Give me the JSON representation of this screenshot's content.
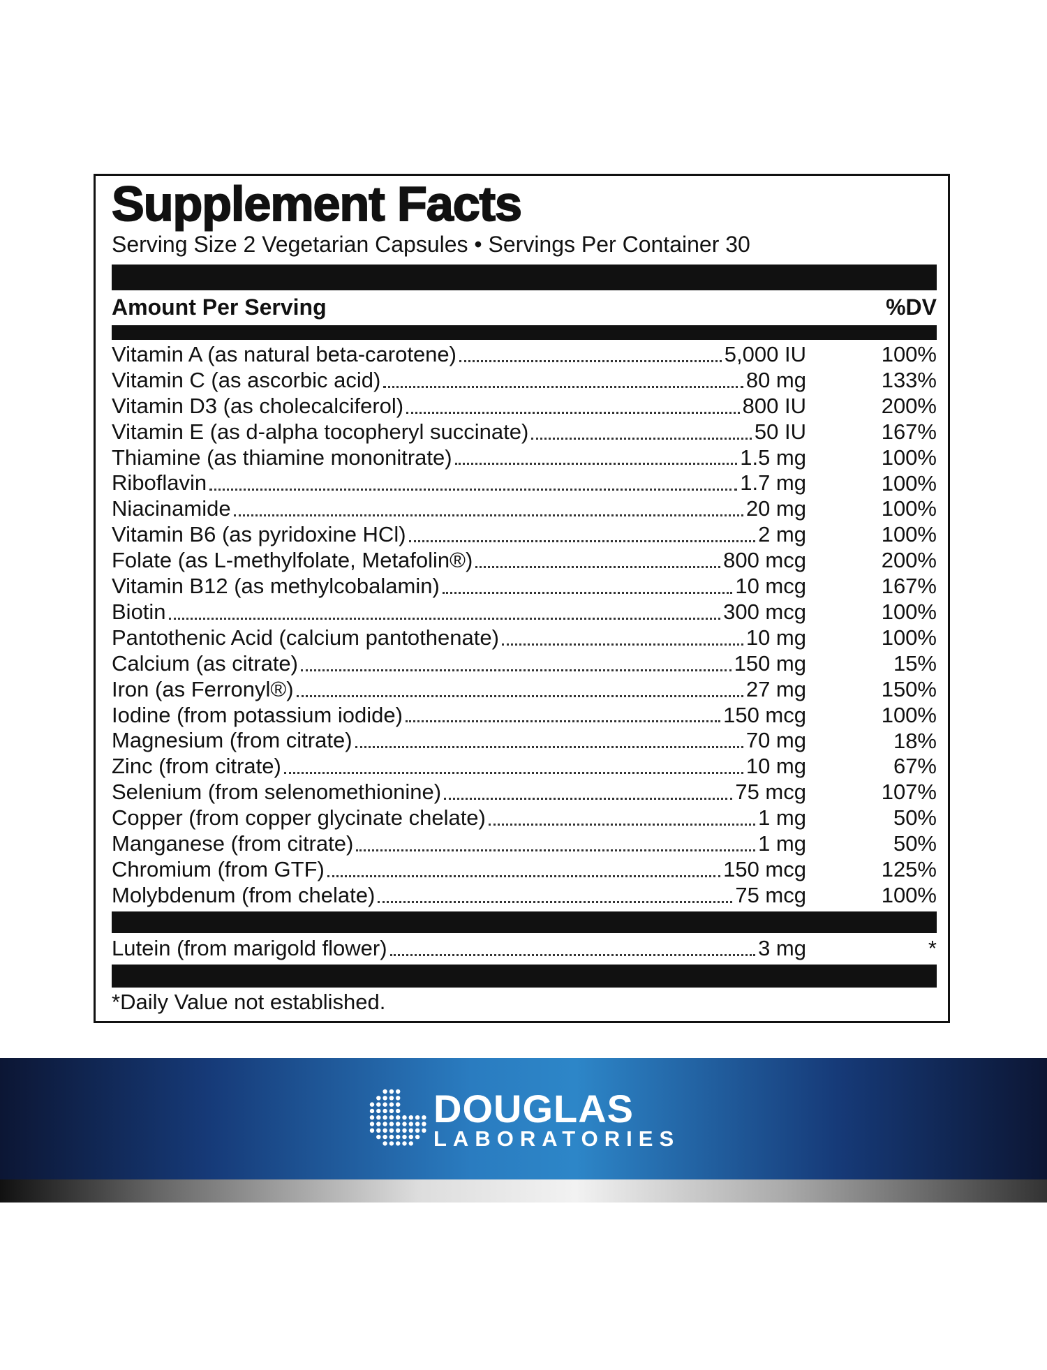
{
  "header": {
    "title": "Supplement Facts",
    "serving": "Serving Size 2 Vegetarian Capsules • Servings Per Container 30"
  },
  "columns": {
    "amount": "Amount Per Serving",
    "dv": "%DV"
  },
  "rows": [
    {
      "name": "Vitamin A (as natural beta-carotene)",
      "amount": "5,000 IU",
      "dv": "100%"
    },
    {
      "name": "Vitamin C (as ascorbic acid)",
      "amount": "80 mg",
      "dv": "133%"
    },
    {
      "name": "Vitamin D3 (as cholecalciferol)",
      "amount": "800 IU",
      "dv": "200%"
    },
    {
      "name": "Vitamin E (as d-alpha tocopheryl succinate)",
      "amount": "50 IU",
      "dv": "167%"
    },
    {
      "name": "Thiamine (as thiamine mononitrate)",
      "amount": "1.5 mg",
      "dv": "100%"
    },
    {
      "name": "Riboflavin",
      "amount": "1.7 mg",
      "dv": "100%"
    },
    {
      "name": "Niacinamide",
      "amount": "20 mg",
      "dv": "100%"
    },
    {
      "name": "Vitamin B6 (as pyridoxine HCl)",
      "amount": "2 mg",
      "dv": "100%"
    },
    {
      "name": "Folate (as L-methylfolate, Metafolin®)",
      "amount": "800 mcg",
      "dv": "200%"
    },
    {
      "name": "Vitamin B12 (as methylcobalamin)",
      "amount": "10 mcg",
      "dv": "167%"
    },
    {
      "name": "Biotin",
      "amount": "300 mcg",
      "dv": "100%"
    },
    {
      "name": "Pantothenic Acid (calcium pantothenate)",
      "amount": "10 mg",
      "dv": "100%"
    },
    {
      "name": "Calcium (as citrate)",
      "amount": "150 mg",
      "dv": "15%"
    },
    {
      "name": "Iron (as Ferronyl®)",
      "amount": "27 mg",
      "dv": "150%"
    },
    {
      "name": "Iodine (from potassium iodide)",
      "amount": "150 mcg",
      "dv": "100%"
    },
    {
      "name": "Magnesium (from citrate)",
      "amount": "70 mg",
      "dv": "18%"
    },
    {
      "name": "Zinc (from citrate)",
      "amount": "10 mg",
      "dv": "67%"
    },
    {
      "name": "Selenium (from selenomethionine)",
      "amount": "75 mcg",
      "dv": "107%"
    },
    {
      "name": "Copper (from copper glycinate chelate)",
      "amount": "1 mg",
      "dv": "50%"
    },
    {
      "name": "Manganese (from citrate)",
      "amount": "1 mg",
      "dv": "50%"
    },
    {
      "name": "Chromium (from GTF)",
      "amount": "150 mcg",
      "dv": "125%"
    },
    {
      "name": "Molybdenum (from chelate)",
      "amount": "75 mcg",
      "dv": "100%"
    }
  ],
  "other_rows": [
    {
      "name": "Lutein (from marigold flower)",
      "amount": "3 mg",
      "dv": "*"
    }
  ],
  "footnote": "*Daily Value not established.",
  "brand": {
    "name": "DOUGLAS",
    "sub": "LABORATORIES"
  }
}
